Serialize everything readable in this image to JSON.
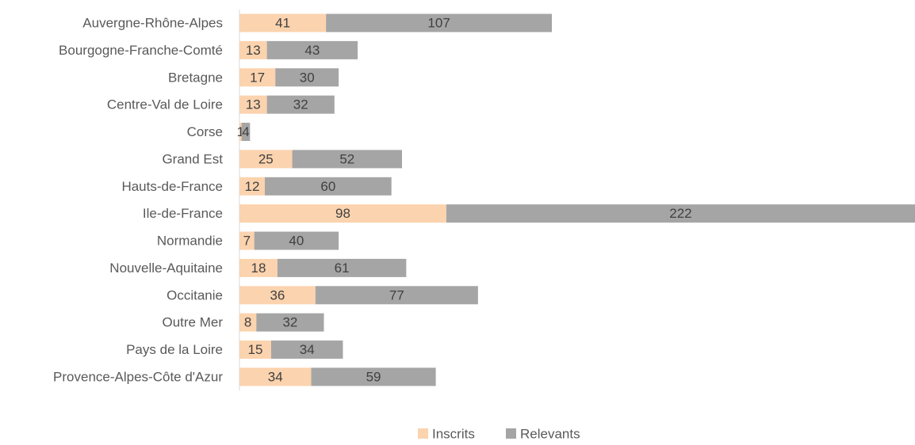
{
  "chart_data": {
    "type": "bar",
    "orientation": "horizontal",
    "stacked": true,
    "categories": [
      "Auvergne-Rhône-Alpes",
      "Bourgogne-Franche-Comté",
      "Bretagne",
      "Centre-Val de Loire",
      "Corse",
      "Grand Est",
      "Hauts-de-France",
      "Ile-de-France",
      "Normandie",
      "Nouvelle-Aquitaine",
      "Occitanie",
      "Outre Mer",
      "Pays de la Loire",
      "Provence-Alpes-Côte d'Azur"
    ],
    "series": [
      {
        "name": "Inscrits",
        "color": "#FBD3AE",
        "values": [
          41,
          13,
          17,
          13,
          1,
          25,
          12,
          98,
          7,
          18,
          36,
          8,
          15,
          34
        ]
      },
      {
        "name": "Relevants",
        "color": "#A5A5A5",
        "values": [
          107,
          43,
          30,
          32,
          4,
          52,
          60,
          222,
          40,
          61,
          77,
          32,
          34,
          59
        ]
      }
    ],
    "xlim": [
      0,
      320
    ],
    "grid": false,
    "data_labels": true,
    "legend_position": "bottom",
    "title": "",
    "xlabel": "",
    "ylabel": ""
  }
}
